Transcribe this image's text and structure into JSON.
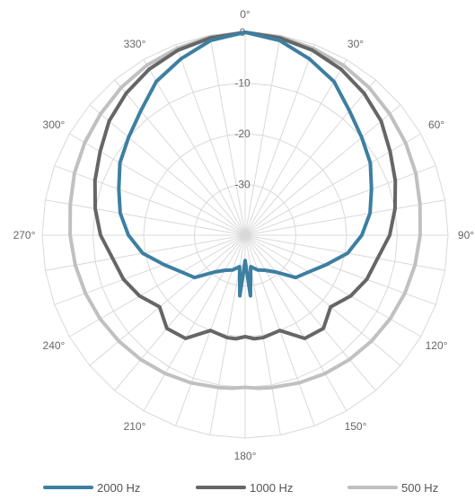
{
  "chart_data": {
    "type": "polar-line",
    "title": "",
    "radial_axis": {
      "min": -40,
      "max": 0,
      "ticks": [
        0,
        -10,
        -20,
        -30
      ]
    },
    "angular_axis": {
      "labels": [
        "0°",
        "30°",
        "60°",
        "90°",
        "120°",
        "150°",
        "180°",
        "210°",
        "240°",
        "270°",
        "300°",
        "330°"
      ],
      "start": "top",
      "direction": "clockwise",
      "grid_step_deg": 10
    },
    "grid": true,
    "legend_position": "bottom",
    "angles": [
      0,
      10,
      20,
      30,
      40,
      50,
      60,
      70,
      80,
      90,
      100,
      110,
      120,
      130,
      140,
      150,
      160,
      170,
      175,
      180,
      185,
      190,
      200,
      210,
      220,
      230,
      240,
      250,
      260,
      270,
      280,
      290,
      300,
      310,
      320,
      330,
      340,
      350
    ],
    "series": [
      {
        "name": "2000 Hz",
        "color": "#3d7fa1",
        "values": [
          0,
          -1,
          -3,
          -5,
          -8,
          -10,
          -11.5,
          -13.5,
          -15,
          -17,
          -19.5,
          -23,
          -25.5,
          -27,
          -30.5,
          -32,
          -32.7,
          -33.7,
          -28,
          -35,
          -28,
          -33.7,
          -32.7,
          -32,
          -30.5,
          -27,
          -25.5,
          -23,
          -19.5,
          -17,
          -15,
          -13.5,
          -11.5,
          -10,
          -8,
          -5,
          -3,
          -1
        ]
      },
      {
        "name": "1000 Hz",
        "color": "#666666",
        "values": [
          0,
          -0.5,
          -1.2,
          -2.2,
          -3.5,
          -5,
          -7,
          -8.5,
          -10,
          -11.5,
          -13.5,
          -14.5,
          -16,
          -18,
          -16,
          -16.5,
          -20,
          -19.5,
          -19.5,
          -20,
          -19.5,
          -19.5,
          -20,
          -16.5,
          -16,
          -18,
          -16,
          -14.5,
          -13.5,
          -11.5,
          -10,
          -8.5,
          -7,
          -5,
          -3.5,
          -2.2,
          -1.2,
          -0.5
        ]
      },
      {
        "name": "500 Hz",
        "color": "#c0c0c0",
        "values": [
          0,
          -0.3,
          -0.8,
          -1.3,
          -2,
          -2.8,
          -3.5,
          -4.2,
          -5,
          -5.5,
          -6,
          -6.5,
          -7,
          -7.5,
          -8,
          -8.5,
          -9,
          -9.5,
          -9.7,
          -10,
          -9.7,
          -9.5,
          -9,
          -8.5,
          -8,
          -7.5,
          -7,
          -6.5,
          -6,
          -5.5,
          -5,
          -4.2,
          -3.5,
          -2.8,
          -2,
          -1.3,
          -0.8,
          -0.3
        ]
      }
    ]
  }
}
